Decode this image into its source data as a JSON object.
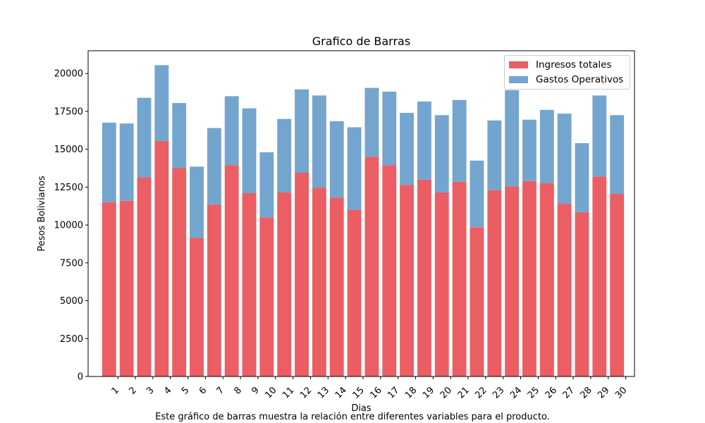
{
  "chart_data": {
    "type": "bar",
    "stacked": true,
    "title": "Grafico de Barras",
    "xlabel": "Dias",
    "ylabel": "Pesos Bolivianos",
    "caption": "Este gráfico de barras muestra la relación entre diferentes variables para el producto.",
    "categories": [
      "1",
      "2",
      "3",
      "4",
      "5",
      "6",
      "7",
      "8",
      "9",
      "10",
      "11",
      "12",
      "13",
      "14",
      "15",
      "16",
      "17",
      "18",
      "19",
      "20",
      "21",
      "22",
      "23",
      "24",
      "25",
      "26",
      "27",
      "28",
      "29",
      "30"
    ],
    "x_tick_rotation": 45,
    "ylim": [
      0,
      21500
    ],
    "yticks": [
      0,
      2500,
      5000,
      7500,
      10000,
      12500,
      15000,
      17500,
      20000
    ],
    "grid": false,
    "legend_position": "top-right",
    "series": [
      {
        "name": "Ingresos totales",
        "color": "#eb5e63",
        "values": [
          11500,
          11600,
          13150,
          15550,
          13750,
          9150,
          11350,
          13950,
          12100,
          10500,
          12150,
          13450,
          12450,
          11800,
          11000,
          14500,
          13950,
          12650,
          13000,
          12150,
          12850,
          9850,
          12300,
          12550,
          12900,
          12750,
          11400,
          10850,
          13200,
          12050
        ]
      },
      {
        "name": "Gastos Operativos",
        "color": "#74a5cf",
        "values": [
          5250,
          5100,
          5250,
          5000,
          4300,
          4700,
          5050,
          4550,
          5600,
          4300,
          4850,
          5500,
          6100,
          5050,
          5450,
          4550,
          4850,
          4750,
          5150,
          5100,
          5400,
          4400,
          4600,
          6350,
          4050,
          4850,
          5950,
          4550,
          5350,
          5200
        ]
      }
    ]
  }
}
